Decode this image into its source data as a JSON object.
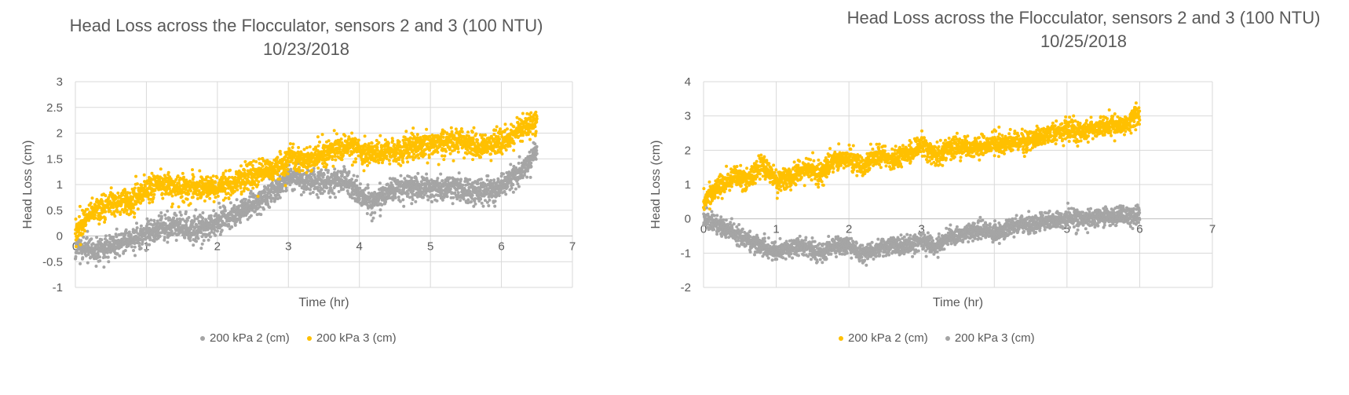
{
  "chart_data": [
    {
      "type": "scatter",
      "title": "Head Loss across the Flocculator, sensors 2 and 3 (100 NTU) 10/23/2018",
      "xlabel": "Time (hr)",
      "ylabel": "Head Loss (cm)",
      "xlim": [
        0,
        7
      ],
      "ylim": [
        -1,
        3
      ],
      "xticks": [
        "0",
        "1",
        "2",
        "3",
        "4",
        "5",
        "6",
        "7"
      ],
      "yticks": [
        "-1",
        "-0.5",
        "0",
        "0.5",
        "1",
        "1.5",
        "2",
        "2.5",
        "3"
      ],
      "grid": true,
      "legend_position": "bottom",
      "series": [
        {
          "name": "200 kPa 2 (cm)",
          "color": "#A5A5A5",
          "trend": [
            [
              0,
              -0.25
            ],
            [
              0.3,
              -0.3
            ],
            [
              0.6,
              -0.15
            ],
            [
              1.0,
              0.0
            ],
            [
              1.2,
              0.2
            ],
            [
              1.5,
              0.15
            ],
            [
              1.8,
              0.1
            ],
            [
              2.0,
              0.3
            ],
            [
              2.3,
              0.45
            ],
            [
              2.6,
              0.7
            ],
            [
              2.9,
              1.0
            ],
            [
              3.0,
              1.2
            ],
            [
              3.2,
              1.1
            ],
            [
              3.5,
              1.0
            ],
            [
              3.8,
              1.1
            ],
            [
              4.0,
              0.8
            ],
            [
              4.2,
              0.65
            ],
            [
              4.5,
              0.95
            ],
            [
              4.8,
              0.95
            ],
            [
              5.0,
              0.9
            ],
            [
              5.3,
              0.95
            ],
            [
              5.6,
              0.85
            ],
            [
              5.9,
              0.9
            ],
            [
              6.1,
              1.05
            ],
            [
              6.3,
              1.3
            ],
            [
              6.5,
              1.65
            ]
          ],
          "noise": 0.12
        },
        {
          "name": "200 kPa 3 (cm)",
          "color": "#FFC000",
          "trend": [
            [
              0,
              0.05
            ],
            [
              0.2,
              0.45
            ],
            [
              0.5,
              0.6
            ],
            [
              0.8,
              0.7
            ],
            [
              1.0,
              0.9
            ],
            [
              1.2,
              1.0
            ],
            [
              1.5,
              0.95
            ],
            [
              1.8,
              0.95
            ],
            [
              2.0,
              0.95
            ],
            [
              2.3,
              1.1
            ],
            [
              2.6,
              1.2
            ],
            [
              2.9,
              1.35
            ],
            [
              3.0,
              1.5
            ],
            [
              3.3,
              1.5
            ],
            [
              3.6,
              1.65
            ],
            [
              3.9,
              1.75
            ],
            [
              4.2,
              1.6
            ],
            [
              4.5,
              1.65
            ],
            [
              4.8,
              1.75
            ],
            [
              5.1,
              1.8
            ],
            [
              5.4,
              1.85
            ],
            [
              5.7,
              1.7
            ],
            [
              6.0,
              1.85
            ],
            [
              6.2,
              2.0
            ],
            [
              6.4,
              2.2
            ],
            [
              6.5,
              2.3
            ]
          ],
          "noise": 0.12
        }
      ]
    },
    {
      "type": "scatter",
      "title": "Head Loss across the Flocculator, sensors 2 and 3 (100 NTU) 10/25/2018",
      "xlabel": "Time (hr)",
      "ylabel": "Head Loss (cm)",
      "xlim": [
        0,
        7
      ],
      "ylim": [
        -2,
        4
      ],
      "xticks": [
        "0",
        "1",
        "2",
        "3",
        "4",
        "5",
        "6",
        "7"
      ],
      "yticks": [
        "-2",
        "-1",
        "0",
        "1",
        "2",
        "3",
        "4"
      ],
      "grid": true,
      "legend_position": "bottom",
      "series": [
        {
          "name": "200 kPa 2 (cm)",
          "color": "#FFC000",
          "trend": [
            [
              0,
              0.5
            ],
            [
              0.2,
              0.9
            ],
            [
              0.4,
              1.2
            ],
            [
              0.6,
              1.1
            ],
            [
              0.8,
              1.6
            ],
            [
              1.0,
              1.1
            ],
            [
              1.2,
              1.2
            ],
            [
              1.4,
              1.5
            ],
            [
              1.6,
              1.3
            ],
            [
              1.8,
              1.7
            ],
            [
              2.0,
              1.8
            ],
            [
              2.2,
              1.5
            ],
            [
              2.4,
              1.9
            ],
            [
              2.6,
              1.75
            ],
            [
              2.8,
              1.9
            ],
            [
              3.0,
              2.2
            ],
            [
              3.2,
              1.8
            ],
            [
              3.4,
              2.1
            ],
            [
              3.6,
              2.1
            ],
            [
              3.8,
              2.1
            ],
            [
              4.0,
              2.2
            ],
            [
              4.2,
              2.2
            ],
            [
              4.4,
              2.3
            ],
            [
              4.6,
              2.35
            ],
            [
              4.8,
              2.5
            ],
            [
              5.0,
              2.6
            ],
            [
              5.2,
              2.55
            ],
            [
              5.4,
              2.65
            ],
            [
              5.6,
              2.7
            ],
            [
              5.8,
              2.75
            ],
            [
              6.0,
              3.1
            ]
          ],
          "noise": 0.15
        },
        {
          "name": "200 kPa 3 (cm)",
          "color": "#A5A5A5",
          "trend": [
            [
              0,
              0.0
            ],
            [
              0.2,
              -0.2
            ],
            [
              0.4,
              -0.4
            ],
            [
              0.6,
              -0.6
            ],
            [
              0.8,
              -0.8
            ],
            [
              1.0,
              -0.95
            ],
            [
              1.2,
              -0.85
            ],
            [
              1.4,
              -0.8
            ],
            [
              1.6,
              -1.0
            ],
            [
              1.8,
              -0.8
            ],
            [
              2.0,
              -0.8
            ],
            [
              2.2,
              -1.0
            ],
            [
              2.4,
              -0.85
            ],
            [
              2.6,
              -0.8
            ],
            [
              2.8,
              -0.8
            ],
            [
              3.0,
              -0.65
            ],
            [
              3.2,
              -0.8
            ],
            [
              3.4,
              -0.5
            ],
            [
              3.6,
              -0.45
            ],
            [
              3.8,
              -0.3
            ],
            [
              4.0,
              -0.4
            ],
            [
              4.2,
              -0.3
            ],
            [
              4.4,
              -0.15
            ],
            [
              4.6,
              -0.1
            ],
            [
              4.8,
              -0.05
            ],
            [
              5.0,
              0.0
            ],
            [
              5.2,
              0.0
            ],
            [
              5.4,
              0.05
            ],
            [
              5.6,
              0.05
            ],
            [
              5.8,
              0.1
            ],
            [
              6.0,
              0.1
            ]
          ],
          "noise": 0.13
        }
      ]
    }
  ]
}
